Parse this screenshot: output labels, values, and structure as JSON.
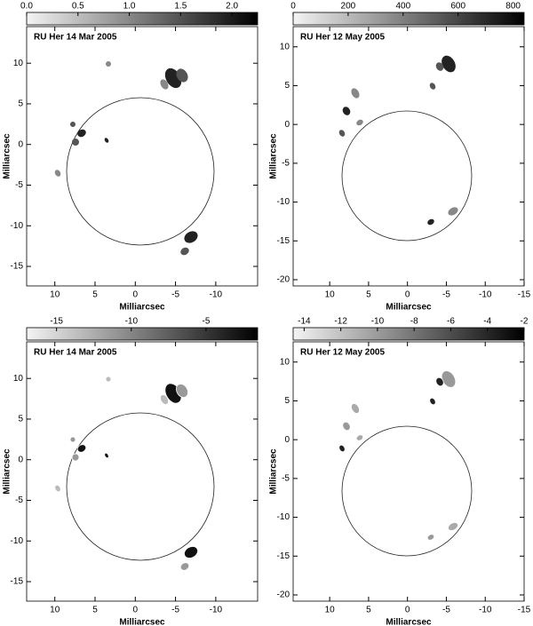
{
  "chart_data": [
    {
      "type": "image",
      "title": "RU Her 14 Mar 2005",
      "xlabel": "Milliarcsec",
      "ylabel": "Milliarcsec",
      "xlim": [
        13.5,
        -15.2
      ],
      "ylim": [
        -17.4,
        14.5
      ],
      "xticks": [
        10,
        5,
        0,
        -5,
        -10
      ],
      "yticks": [
        10,
        5,
        0,
        -5,
        -10,
        -15
      ],
      "clim": [
        0,
        2.25
      ],
      "cticks": [
        {
          "value": 0,
          "label": "0.0"
        },
        0.5,
        {
          "value": 1,
          "label": "1.0"
        },
        1.5,
        {
          "value": 2,
          "label": "2.0"
        }
      ]
    },
    {
      "type": "image",
      "title": "RU Her 12 May 2005",
      "xlabel": "Milliarcsec",
      "ylabel": "Milliarcsec",
      "xlim": [
        14.7,
        -15
      ],
      "ylim": [
        -20.8,
        12.6
      ],
      "xticks": [
        10,
        5,
        0,
        -5,
        -10,
        -15
      ],
      "yticks": [
        10,
        5,
        0,
        -5,
        -10,
        -15,
        -20
      ],
      "clim": [
        0,
        840
      ],
      "cticks": [
        0,
        200,
        400,
        600,
        800
      ]
    },
    {
      "type": "image",
      "title": "RU Her 14 Mar 2005",
      "xlabel": "Milliarcsec",
      "ylabel": "Milliarcsec",
      "xlim": [
        13.5,
        -15.2
      ],
      "ylim": [
        -17.4,
        14.5
      ],
      "xticks": [
        10,
        5,
        0,
        -5,
        -10
      ],
      "yticks": [
        10,
        5,
        0,
        -5,
        -10,
        -15
      ],
      "clim": [
        -17,
        -1.55
      ],
      "cticks": [
        -15,
        -10,
        -5
      ]
    },
    {
      "type": "image",
      "title": "RU Her 12 May 2005",
      "xlabel": "Milliarcsec",
      "ylabel": "Milliarcsec",
      "xlim": [
        14.7,
        -15
      ],
      "ylim": [
        -20.8,
        12.6
      ],
      "xticks": [
        10,
        5,
        0,
        -5,
        -10,
        -15
      ],
      "yticks": [
        10,
        5,
        0,
        -5,
        -10,
        -15,
        -20
      ],
      "clim": [
        -14.6,
        -2
      ],
      "cticks": [
        -14,
        -12,
        -10,
        -8,
        -6,
        -4,
        -2
      ]
    }
  ]
}
